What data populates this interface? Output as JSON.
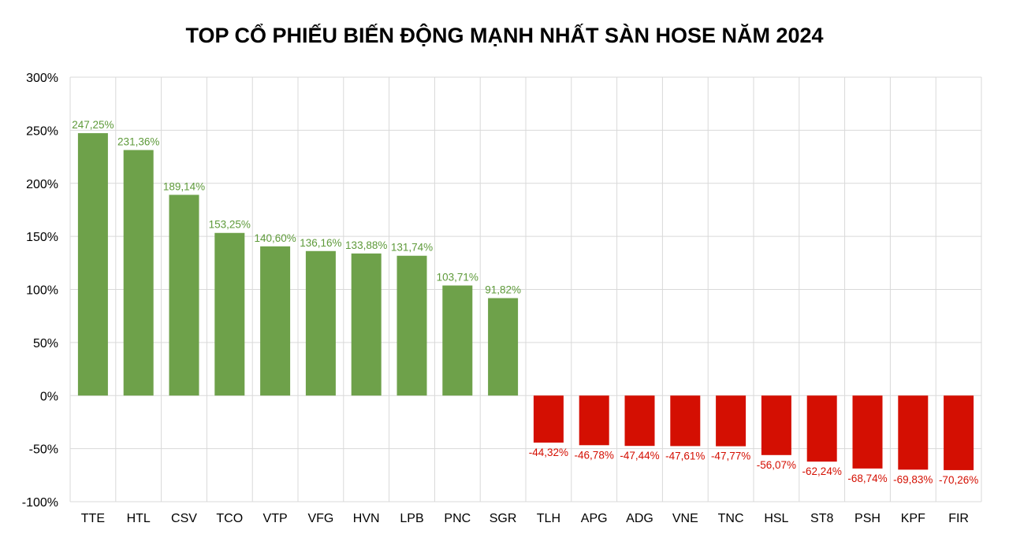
{
  "chart_data": {
    "type": "bar",
    "title": "TOP CỔ PHIẾU BIẾN ĐỘNG MẠNH NHẤT SÀN HOSE NĂM 2024",
    "xlabel": "",
    "ylabel": "",
    "ylim": [
      -100,
      300
    ],
    "yticks": [
      "300%",
      "250%",
      "200%",
      "150%",
      "100%",
      "50%",
      "0%",
      "-50%",
      "-100%"
    ],
    "ytick_values": [
      300,
      250,
      200,
      150,
      100,
      50,
      0,
      -50,
      -100
    ],
    "grid": true,
    "categories": [
      "TTE",
      "HTL",
      "CSV",
      "TCO",
      "VTP",
      "VFG",
      "HVN",
      "LPB",
      "PNC",
      "SGR",
      "TLH",
      "APG",
      "ADG",
      "VNE",
      "TNC",
      "HSL",
      "ST8",
      "PSH",
      "KPF",
      "FIR"
    ],
    "values": [
      247.25,
      231.36,
      189.14,
      153.25,
      140.6,
      136.16,
      133.88,
      131.74,
      103.71,
      91.82,
      -44.32,
      -46.78,
      -47.44,
      -47.61,
      -47.77,
      -56.07,
      -62.24,
      -68.74,
      -69.83,
      -70.26
    ],
    "labels": [
      "247,25%",
      "231,36%",
      "189,14%",
      "153,25%",
      "140,60%",
      "136,16%",
      "133,88%",
      "131,74%",
      "103,71%",
      "91,82%",
      "-44,32%",
      "-46,78%",
      "-47,44%",
      "-47,61%",
      "-47,77%",
      "-56,07%",
      "-62,24%",
      "-68,74%",
      "-69,83%",
      "-70,26%"
    ],
    "colors": {
      "positive": "#6ea14a",
      "negative": "#d40f02",
      "positive_label": "#5e9a3a",
      "negative_label": "#d40f02",
      "grid": "#d9d9d9"
    }
  }
}
